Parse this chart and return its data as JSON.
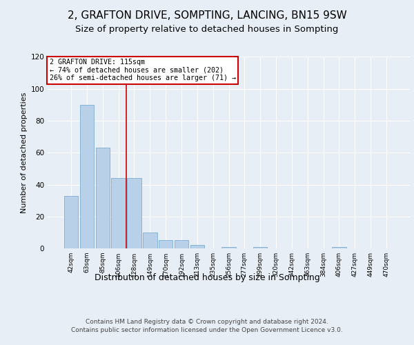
{
  "title1": "2, GRAFTON DRIVE, SOMPTING, LANCING, BN15 9SW",
  "title2": "Size of property relative to detached houses in Sompting",
  "xlabel": "Distribution of detached houses by size in Sompting",
  "ylabel": "Number of detached properties",
  "categories": [
    "42sqm",
    "63sqm",
    "85sqm",
    "106sqm",
    "128sqm",
    "149sqm",
    "170sqm",
    "192sqm",
    "213sqm",
    "235sqm",
    "256sqm",
    "277sqm",
    "299sqm",
    "320sqm",
    "342sqm",
    "363sqm",
    "384sqm",
    "406sqm",
    "427sqm",
    "449sqm",
    "470sqm"
  ],
  "values": [
    33,
    90,
    63,
    44,
    44,
    10,
    5,
    5,
    2,
    0,
    1,
    0,
    1,
    0,
    0,
    0,
    0,
    1,
    0,
    0,
    0
  ],
  "bar_color": "#b8d0e8",
  "bar_edgecolor": "#7aaed4",
  "vline_color": "#cc0000",
  "annotation_text": "2 GRAFTON DRIVE: 115sqm\n← 74% of detached houses are smaller (202)\n26% of semi-detached houses are larger (71) →",
  "annotation_box_color": "#ffffff",
  "annotation_box_edgecolor": "#cc0000",
  "ylim": [
    0,
    120
  ],
  "yticks": [
    0,
    20,
    40,
    60,
    80,
    100,
    120
  ],
  "footer": "Contains HM Land Registry data © Crown copyright and database right 2024.\nContains public sector information licensed under the Open Government Licence v3.0.",
  "bg_color": "#e8eef5",
  "plot_bg_color": "#e8eef5",
  "grid_color": "#ffffff",
  "title1_fontsize": 11,
  "title2_fontsize": 9.5,
  "xlabel_fontsize": 9,
  "ylabel_fontsize": 8,
  "footer_fontsize": 6.5
}
